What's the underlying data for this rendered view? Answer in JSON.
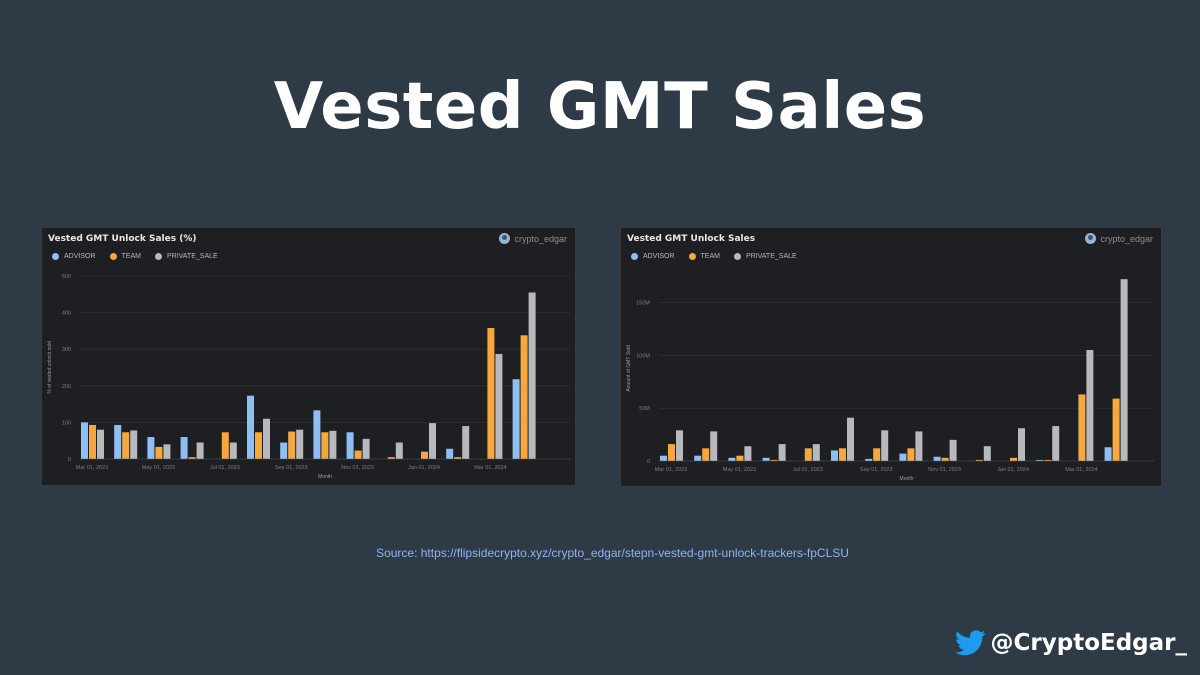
{
  "page": {
    "title": "Vested GMT Sales",
    "source": "Source: https://flipsidecrypto.xyz/crypto_edgar/stepn-vested-gmt-unlock-trackers-fpCLSU",
    "handle": "@CryptoEdgar_",
    "handle_icon": "twitter-bird-icon"
  },
  "colors": {
    "advisor": "#8fbef5",
    "team": "#f7a73e",
    "private_sale": "#b8b9bc"
  },
  "chart_data": [
    {
      "type": "bar",
      "title": "Vested GMT Unlock Sales (%)",
      "author": "crypto_edgar",
      "xlabel": "Month",
      "ylabel": "% of vested unlock sold",
      "ylim": [
        0,
        500
      ],
      "yticks": [
        "0",
        "100",
        "200",
        "300",
        "400",
        "500"
      ],
      "xtick_labels": [
        "Mar 01, 2023",
        "May 01, 2023",
        "Jul 01, 2023",
        "Sep 01, 2023",
        "Nov 01, 2023",
        "Jan 01, 2024",
        "Mar 01, 2024"
      ],
      "xtick_indices": [
        0,
        2,
        4,
        6,
        8,
        10,
        12
      ],
      "legend": [
        "ADVISOR",
        "TEAM",
        "PRIVATE_SALE"
      ],
      "series": [
        {
          "name": "ADVISOR",
          "values": [
            100,
            93,
            60,
            60,
            0,
            173,
            45,
            133,
            73,
            0,
            0,
            28,
            0,
            218
          ]
        },
        {
          "name": "TEAM",
          "values": [
            93,
            73,
            33,
            5,
            73,
            73,
            75,
            73,
            23,
            5,
            20,
            5,
            358,
            338
          ]
        },
        {
          "name": "PRIVATE_SALE",
          "values": [
            80,
            78,
            40,
            45,
            45,
            110,
            80,
            77,
            55,
            45,
            98,
            90,
            287,
            455
          ]
        }
      ]
    },
    {
      "type": "bar",
      "title": "Vested GMT Unlock Sales",
      "author": "crypto_edgar",
      "xlabel": "Month",
      "ylabel": "Amount of GMT Sold",
      "ylim": [
        0,
        175000000
      ],
      "yticks": [
        "0",
        "50M",
        "100M",
        "150M"
      ],
      "xtick_labels": [
        "Mar 01, 2023",
        "May 01, 2023",
        "Jul 01, 2023",
        "Sep 01, 2023",
        "Nov 01, 2023",
        "Jan 01, 2024",
        "Mar 01, 2024"
      ],
      "xtick_indices": [
        0,
        2,
        4,
        6,
        8,
        10,
        12
      ],
      "legend": [
        "ADVISOR",
        "TEAM",
        "PRIVATE_SALE"
      ],
      "series": [
        {
          "name": "ADVISOR",
          "values": [
            5000000,
            5000000,
            3000000,
            3000000,
            0,
            10000000,
            2000000,
            7000000,
            4000000,
            0,
            0,
            1000000,
            0,
            13000000
          ]
        },
        {
          "name": "TEAM",
          "values": [
            16000000,
            12000000,
            5000000,
            1000000,
            12000000,
            12000000,
            12000000,
            12000000,
            3000000,
            1000000,
            3000000,
            1000000,
            63000000,
            59000000
          ]
        },
        {
          "name": "PRIVATE_SALE",
          "values": [
            29000000,
            28000000,
            14000000,
            16000000,
            16000000,
            41000000,
            29000000,
            28000000,
            20000000,
            14000000,
            31000000,
            33000000,
            105000000,
            172000000
          ]
        }
      ]
    }
  ]
}
